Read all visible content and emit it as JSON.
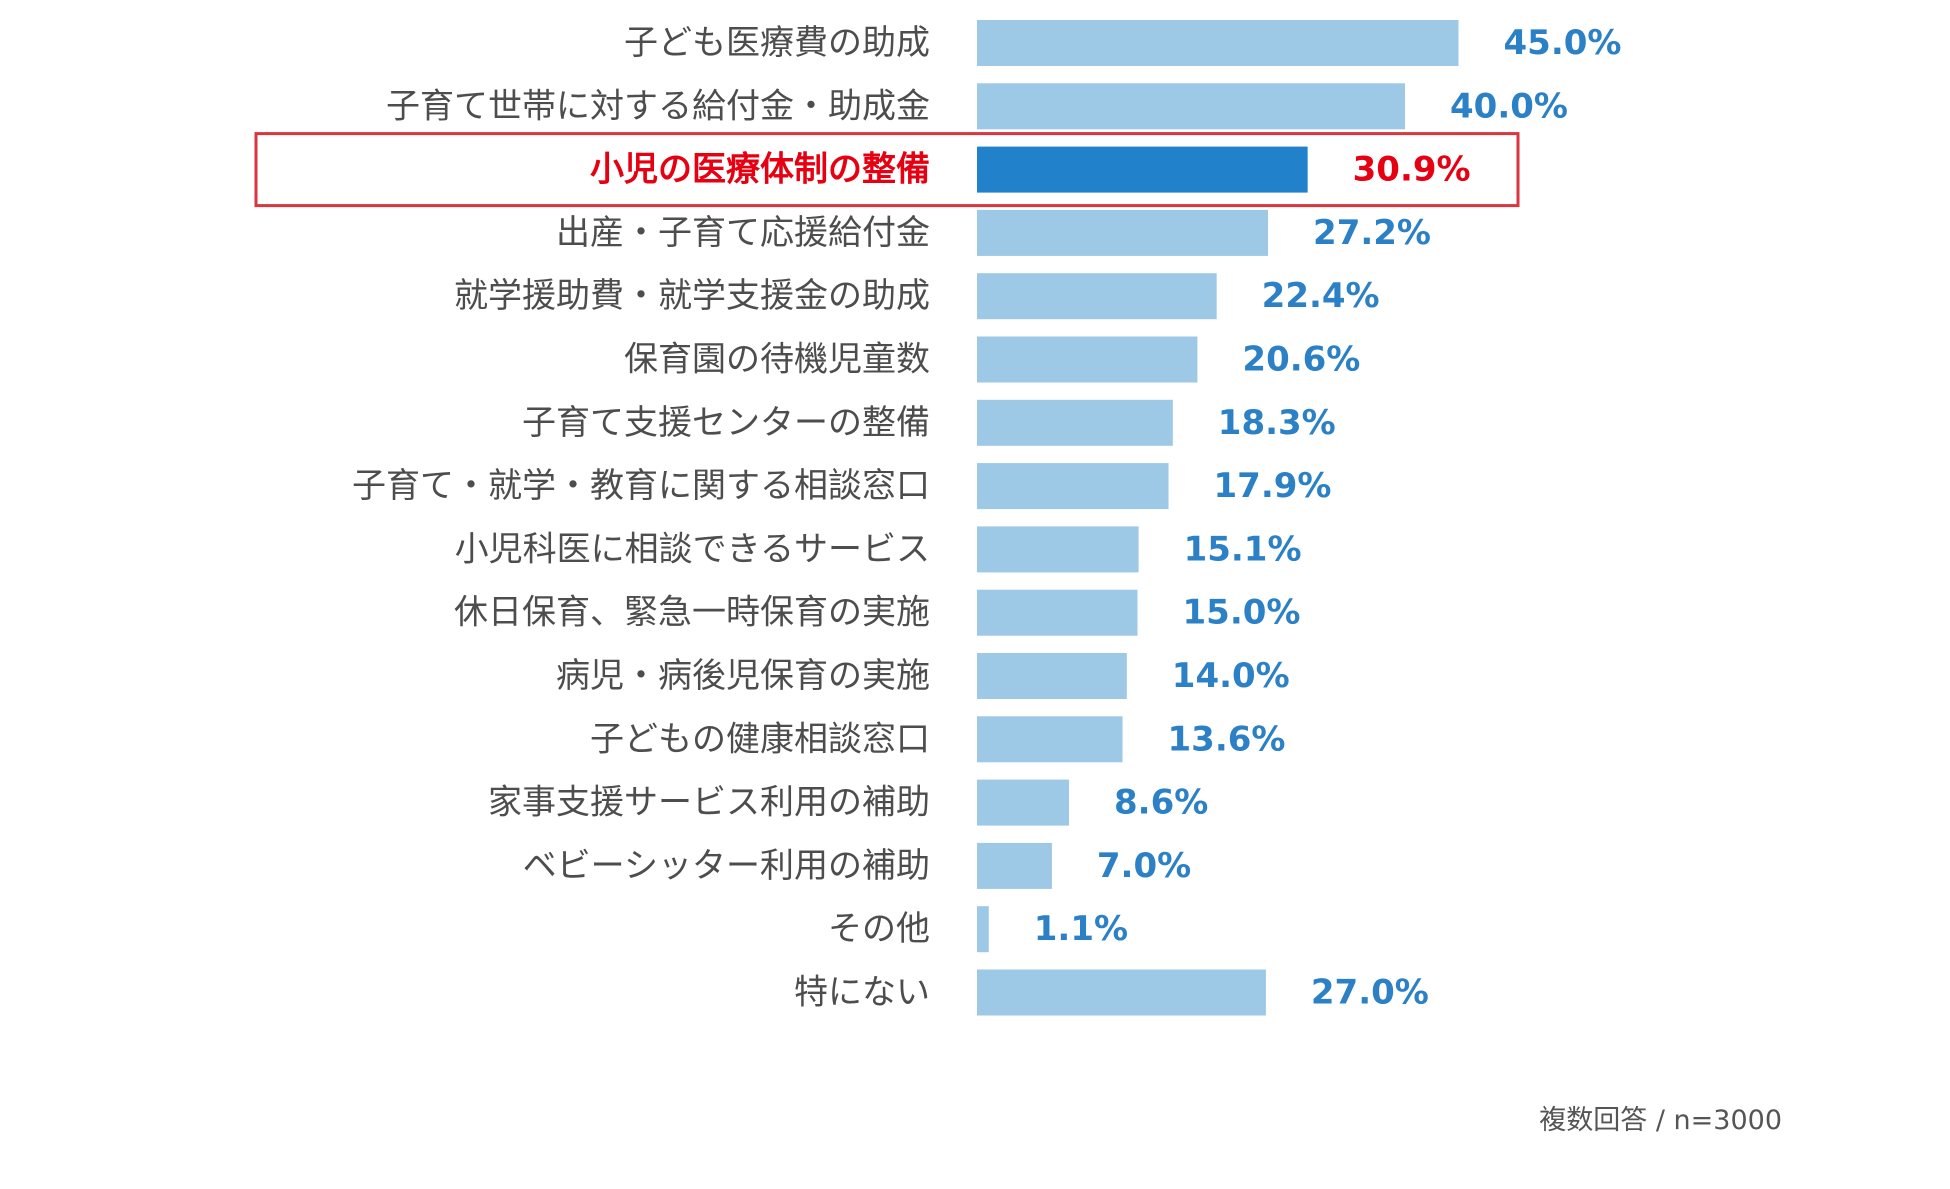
{
  "chart_data": {
    "type": "bar",
    "orientation": "horizontal",
    "title": "",
    "xlabel": "",
    "ylabel": "",
    "xlim": [
      0,
      100
    ],
    "unit": "%",
    "highlight_index": 2,
    "categories": [
      "子ども医療費の助成",
      "子育て世帯に対する給付金・助成金",
      "小児の医療体制の整備",
      "出産・子育て応援給付金",
      "就学援助費・就学支援金の助成",
      "保育園の待機児童数",
      "子育て支援センターの整備",
      "子育て・就学・教育に関する相談窓口",
      "小児科医に相談できるサービス",
      "休日保育、緊急一時保育の実施",
      "病児・病後児保育の実施",
      "子どもの健康相談窓口",
      "家事支援サービス利用の補助",
      "ベビーシッター利用の補助",
      "その他",
      "特にない"
    ],
    "values": [
      45.0,
      40.0,
      30.9,
      27.2,
      22.4,
      20.6,
      18.3,
      17.9,
      15.1,
      15.0,
      14.0,
      13.6,
      8.6,
      7.0,
      1.1,
      27.0
    ],
    "value_labels": [
      "45.0%",
      "40.0%",
      "30.9%",
      "27.2%",
      "22.4%",
      "20.6%",
      "18.3%",
      "17.9%",
      "15.1%",
      "15.0%",
      "14.0%",
      "13.6%",
      "8.6%",
      "7.0%",
      "1.1%",
      "27.0%"
    ],
    "colors": {
      "bar": "#9dc8e6",
      "bar_highlight": "#2182cb",
      "value_text": "#2b80c6",
      "label_text": "#4d4d4d",
      "highlight_text": "#e60012",
      "highlight_box": "#d9363e"
    }
  },
  "footnote": "複数回答 / n=3000"
}
